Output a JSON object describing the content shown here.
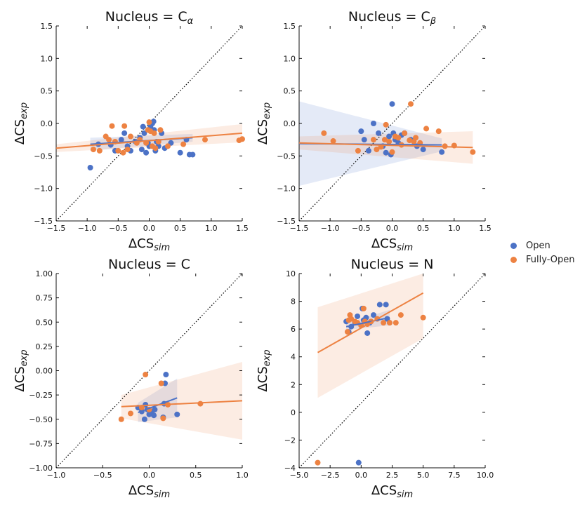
{
  "legend": [
    {
      "name": "Open",
      "color": "#4c72c6"
    },
    {
      "name": "Fully-Open",
      "color": "#ed8242"
    }
  ],
  "chart_data": [
    {
      "type": "scatter",
      "title": "Nucleus = Cα",
      "xlabel": "ΔCSsim",
      "ylabel": "ΔCSexp",
      "xlim": [
        -1.5,
        1.5
      ],
      "ylim": [
        -1.5,
        1.5
      ],
      "xticks": [
        "−1.5",
        "−1.0",
        "−0.5",
        "0.0",
        "0.5",
        "1.0",
        "1.5"
      ],
      "yticks": [
        "−1.5",
        "−1.0",
        "−0.5",
        "0.0",
        "0.5",
        "1.0",
        "1.5"
      ],
      "identity_line": true,
      "series": [
        {
          "name": "Open",
          "points": [
            [
              -0.95,
              -0.68
            ],
            [
              -0.82,
              -0.32
            ],
            [
              -0.62,
              -0.33
            ],
            [
              -0.55,
              -0.42
            ],
            [
              -0.45,
              -0.25
            ],
            [
              -0.4,
              -0.15
            ],
            [
              -0.35,
              -0.35
            ],
            [
              -0.3,
              -0.42
            ],
            [
              -0.22,
              -0.28
            ],
            [
              -0.15,
              -0.22
            ],
            [
              -0.12,
              -0.4
            ],
            [
              -0.1,
              -0.05
            ],
            [
              -0.08,
              -0.15
            ],
            [
              -0.05,
              -0.45
            ],
            [
              -0.02,
              -0.3
            ],
            [
              0.0,
              -0.35
            ],
            [
              0.02,
              -0.05
            ],
            [
              0.05,
              0.0
            ],
            [
              0.07,
              0.03
            ],
            [
              0.08,
              -0.1
            ],
            [
              0.1,
              -0.42
            ],
            [
              0.12,
              -0.28
            ],
            [
              0.15,
              -0.35
            ],
            [
              0.2,
              -0.15
            ],
            [
              0.25,
              -0.38
            ],
            [
              0.35,
              -0.3
            ],
            [
              0.5,
              -0.45
            ],
            [
              0.6,
              -0.25
            ],
            [
              0.65,
              -0.48
            ],
            [
              0.7,
              -0.48
            ]
          ]
        },
        {
          "name": "Fully-Open",
          "points": [
            [
              -0.9,
              -0.4
            ],
            [
              -0.8,
              -0.42
            ],
            [
              -0.7,
              -0.2
            ],
            [
              -0.65,
              -0.25
            ],
            [
              -0.6,
              -0.04
            ],
            [
              -0.55,
              -0.28
            ],
            [
              -0.5,
              -0.42
            ],
            [
              -0.42,
              -0.45
            ],
            [
              -0.4,
              -0.04
            ],
            [
              -0.35,
              -0.4
            ],
            [
              -0.3,
              -0.2
            ],
            [
              -0.2,
              -0.3
            ],
            [
              -0.15,
              -0.25
            ],
            [
              -0.05,
              -0.3
            ],
            [
              -0.02,
              -0.1
            ],
            [
              0.0,
              0.02
            ],
            [
              0.02,
              -0.12
            ],
            [
              0.05,
              -0.35
            ],
            [
              0.08,
              -0.15
            ],
            [
              0.1,
              -0.38
            ],
            [
              0.15,
              -0.28
            ],
            [
              0.18,
              -0.1
            ],
            [
              0.3,
              -0.35
            ],
            [
              0.55,
              -0.32
            ],
            [
              0.9,
              -0.25
            ],
            [
              1.45,
              -0.26
            ],
            [
              1.5,
              -0.24
            ]
          ]
        }
      ],
      "fits": [
        {
          "name": "Open",
          "x": [
            -0.95,
            0.7
          ],
          "y": [
            -0.32,
            -0.22
          ]
        },
        {
          "name": "Fully-Open",
          "x": [
            -1.5,
            1.5
          ],
          "y": [
            -0.38,
            -0.15
          ]
        }
      ]
    },
    {
      "type": "scatter",
      "title": "Nucleus = Cβ",
      "xlabel": "ΔCSsim",
      "ylabel": "ΔCSexp",
      "xlim": [
        -1.5,
        1.5
      ],
      "ylim": [
        -1.5,
        1.5
      ],
      "xticks": [
        "−1.5",
        "−1.0",
        "−0.5",
        "0.0",
        "0.5",
        "1.0",
        "1.5"
      ],
      "yticks": [
        "−1.5",
        "−1.0",
        "−0.5",
        "0.0",
        "0.5",
        "1.0",
        "1.5"
      ],
      "identity_line": true,
      "series": [
        {
          "name": "Open",
          "points": [
            [
              -0.5,
              -0.12
            ],
            [
              -0.45,
              -0.25
            ],
            [
              -0.38,
              -0.42
            ],
            [
              -0.3,
              0.0
            ],
            [
              -0.22,
              -0.15
            ],
            [
              -0.15,
              -0.35
            ],
            [
              -0.1,
              -0.45
            ],
            [
              -0.05,
              -0.2
            ],
            [
              -0.02,
              -0.48
            ],
            [
              0.0,
              0.3
            ],
            [
              0.02,
              -0.15
            ],
            [
              0.05,
              -0.25
            ],
            [
              0.1,
              -0.3
            ],
            [
              0.15,
              -0.18
            ],
            [
              0.2,
              -0.15
            ],
            [
              0.3,
              -0.25
            ],
            [
              0.4,
              -0.35
            ],
            [
              0.5,
              -0.4
            ],
            [
              0.8,
              -0.44
            ]
          ]
        },
        {
          "name": "Fully-Open",
          "points": [
            [
              -1.1,
              -0.15
            ],
            [
              -0.95,
              -0.27
            ],
            [
              -0.55,
              -0.42
            ],
            [
              -0.3,
              -0.25
            ],
            [
              -0.25,
              -0.4
            ],
            [
              -0.18,
              -0.36
            ],
            [
              -0.12,
              -0.25
            ],
            [
              -0.1,
              -0.02
            ],
            [
              -0.05,
              -0.28
            ],
            [
              0.0,
              -0.44
            ],
            [
              0.05,
              -0.2
            ],
            [
              0.1,
              -0.22
            ],
            [
              0.15,
              -0.33
            ],
            [
              0.2,
              -0.15
            ],
            [
              0.28,
              -0.26
            ],
            [
              0.3,
              0.3
            ],
            [
              0.35,
              -0.28
            ],
            [
              0.38,
              -0.22
            ],
            [
              0.45,
              -0.3
            ],
            [
              0.55,
              -0.08
            ],
            [
              0.75,
              -0.12
            ],
            [
              0.85,
              -0.35
            ],
            [
              1.0,
              -0.34
            ],
            [
              1.3,
              -0.44
            ]
          ]
        }
      ],
      "fits": [
        {
          "name": "Open",
          "x": [
            -1.5,
            0.8
          ],
          "y": [
            -0.31,
            -0.33
          ]
        },
        {
          "name": "Fully-Open",
          "x": [
            -1.5,
            1.3
          ],
          "y": [
            -0.3,
            -0.37
          ]
        }
      ]
    },
    {
      "type": "scatter",
      "title": "Nucleus = C",
      "xlabel": "ΔCSsim",
      "ylabel": "ΔCSexp",
      "xlim": [
        -1.0,
        1.0
      ],
      "ylim": [
        -1.0,
        1.0
      ],
      "xticks": [
        "−1.0",
        "−0.5",
        "0.0",
        "0.5",
        "1.0"
      ],
      "yticks": [
        "−1.00",
        "−0.75",
        "−0.50",
        "−0.25",
        "0.00",
        "0.25",
        "0.50",
        "0.75",
        "1.00"
      ],
      "identity_line": true,
      "series": [
        {
          "name": "Open",
          "points": [
            [
              -0.12,
              -0.38
            ],
            [
              -0.08,
              -0.42
            ],
            [
              -0.05,
              -0.5
            ],
            [
              -0.04,
              -0.35
            ],
            [
              -0.02,
              -0.4
            ],
            [
              0.0,
              -0.45
            ],
            [
              0.03,
              -0.42
            ],
            [
              0.05,
              -0.46
            ],
            [
              0.06,
              -0.4
            ],
            [
              0.15,
              -0.48
            ],
            [
              0.16,
              -0.34
            ],
            [
              0.17,
              -0.13
            ],
            [
              0.18,
              -0.04
            ],
            [
              0.3,
              -0.45
            ]
          ]
        },
        {
          "name": "Fully-Open",
          "points": [
            [
              -0.3,
              -0.5
            ],
            [
              -0.2,
              -0.44
            ],
            [
              -0.08,
              -0.38
            ],
            [
              -0.04,
              -0.04
            ],
            [
              0.0,
              -0.4
            ],
            [
              0.13,
              -0.13
            ],
            [
              0.15,
              -0.49
            ],
            [
              0.2,
              -0.35
            ],
            [
              0.55,
              -0.34
            ]
          ]
        }
      ],
      "fits": [
        {
          "name": "Open",
          "x": [
            -0.12,
            0.3
          ],
          "y": [
            -0.43,
            -0.28
          ]
        },
        {
          "name": "Fully-Open",
          "x": [
            -0.3,
            1.0
          ],
          "y": [
            -0.37,
            -0.31
          ]
        }
      ]
    },
    {
      "type": "scatter",
      "title": "Nucleus = N",
      "xlabel": "ΔCSsim",
      "ylabel": "ΔCSexp",
      "xlim": [
        -5.0,
        10.0
      ],
      "ylim": [
        -5,
        10
      ],
      "xticks": [
        "−5.0",
        "−2.5",
        "0.0",
        "2.5",
        "5.0",
        "7.5",
        "10.0"
      ],
      "yticks": [
        "−4",
        "−2",
        "0",
        "2",
        "4",
        "6",
        "8",
        "10"
      ],
      "identity_line": true,
      "series": [
        {
          "name": "Open",
          "points": [
            [
              -1.2,
              6.3
            ],
            [
              -1.0,
              5.5
            ],
            [
              -0.8,
              5.9
            ],
            [
              -0.5,
              6.2
            ],
            [
              -0.2,
              -4.6
            ],
            [
              0.0,
              6.0
            ],
            [
              0.2,
              6.4
            ],
            [
              0.4,
              6.6
            ],
            [
              0.5,
              5.4
            ],
            [
              0.7,
              6.2
            ],
            [
              1.0,
              6.8
            ],
            [
              1.5,
              7.6
            ],
            [
              2.0,
              7.6
            ],
            [
              2.1,
              6.5
            ],
            [
              2.3,
              6.2
            ],
            [
              0.1,
              7.3
            ],
            [
              -0.3,
              6.7
            ]
          ]
        },
        {
          "name": "Fully-Open",
          "points": [
            [
              -3.5,
              -4.6
            ],
            [
              -1.1,
              5.5
            ],
            [
              -1.0,
              6.4
            ],
            [
              -0.9,
              6.8
            ],
            [
              -0.8,
              6.5
            ],
            [
              -0.5,
              6.3
            ],
            [
              -0.3,
              6.2
            ],
            [
              0.0,
              6.0
            ],
            [
              0.2,
              7.3
            ],
            [
              0.3,
              6.3
            ],
            [
              0.5,
              6.1
            ],
            [
              0.8,
              6.3
            ],
            [
              1.3,
              6.5
            ],
            [
              1.8,
              6.2
            ],
            [
              2.3,
              6.2
            ],
            [
              2.8,
              6.2
            ],
            [
              3.2,
              6.8
            ],
            [
              5.0,
              6.6
            ]
          ]
        }
      ],
      "fits": [
        {
          "name": "Open",
          "x": [
            -1.2,
            2.3
          ],
          "y": [
            5.9,
            6.6
          ]
        },
        {
          "name": "Fully-Open",
          "x": [
            -3.5,
            5.0
          ],
          "y": [
            3.9,
            8.5
          ]
        }
      ]
    }
  ]
}
